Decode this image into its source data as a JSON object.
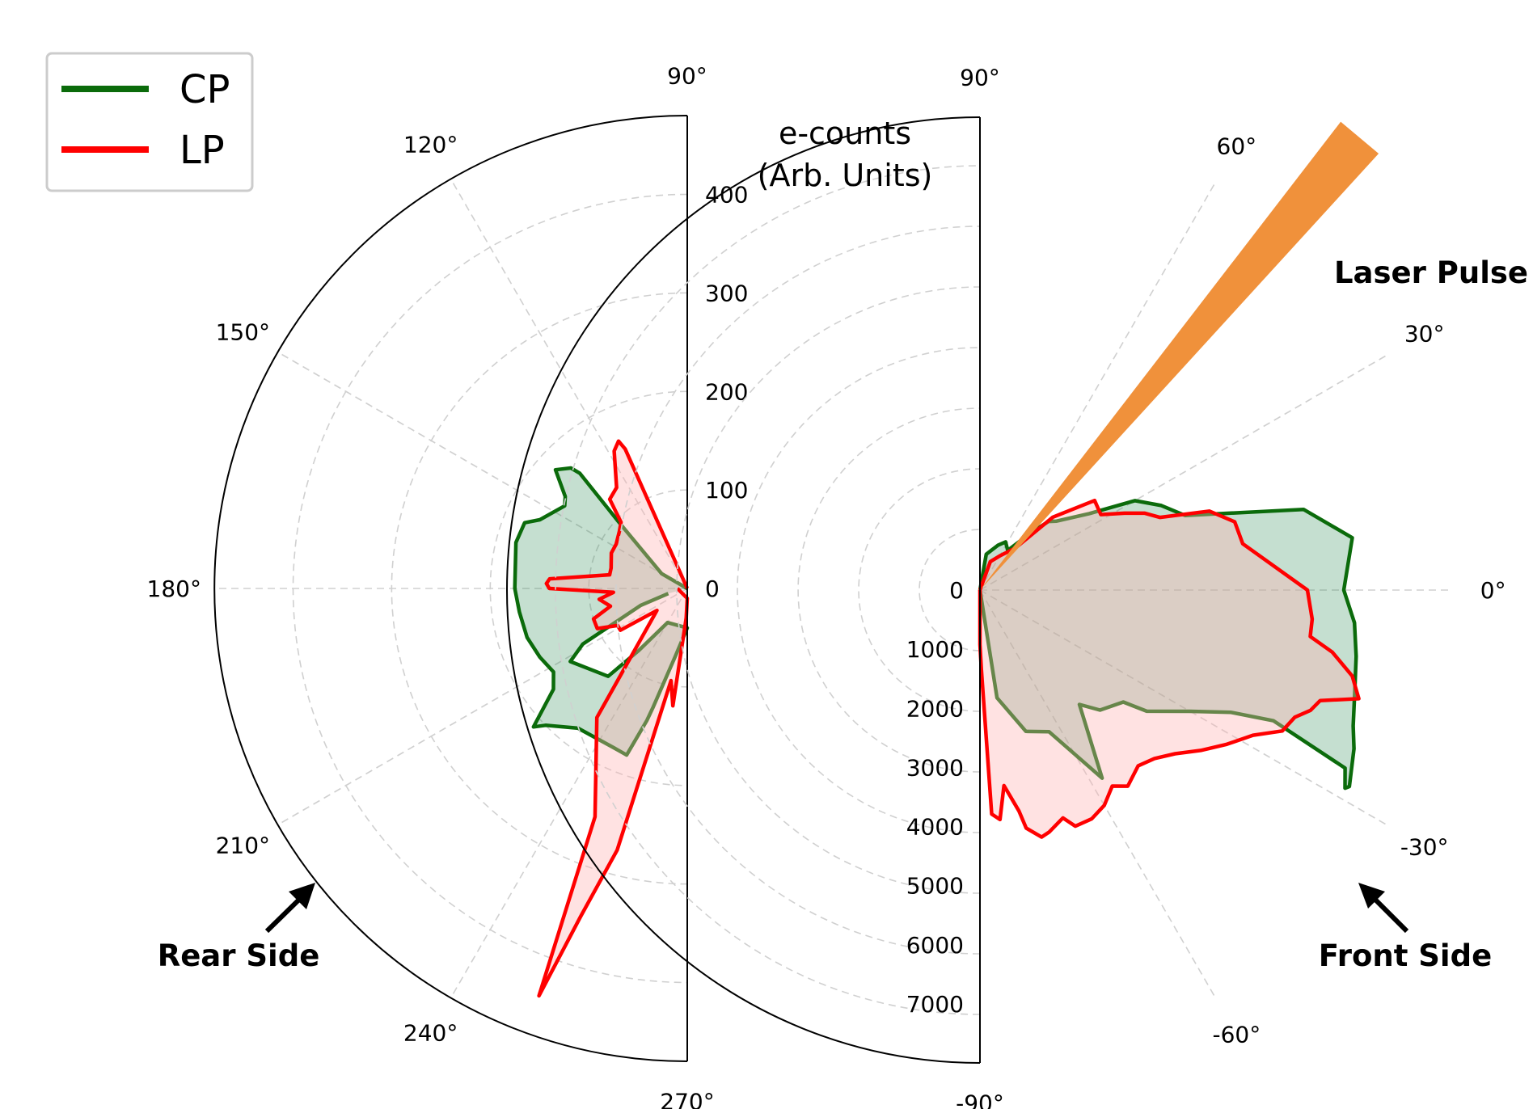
{
  "legend": {
    "cp_label": "CP",
    "lp_label": "LP"
  },
  "colors": {
    "cp": "#0b6b0b",
    "cp_fill": "#2e8b57",
    "lp": "#ff0000",
    "lp_fill": "#ffb3b3",
    "laser": "#f0913b"
  },
  "annotations": {
    "rear_side": "Rear Side",
    "front_side": "Front Side",
    "laser_pulse": "Laser Pulse",
    "rear_axis_label_line1": "e-counts",
    "rear_axis_label_line2": "(Arb. Units)"
  },
  "chart_data": [
    {
      "type": "polar-area",
      "name": "rear",
      "theta_range": [
        90,
        270
      ],
      "theta_ticks": [
        "90°",
        "120°",
        "150°",
        "180°",
        "210°",
        "240°",
        "270°"
      ],
      "theta_tick_values": [
        90,
        120,
        150,
        180,
        210,
        240,
        270
      ],
      "r_lim": [
        0,
        480
      ],
      "r_ticks": [
        "0",
        "100",
        "200",
        "300",
        "400"
      ],
      "r_tick_values": [
        0,
        100,
        200,
        300,
        400
      ],
      "r_label": "e-counts (Arb. Units)",
      "grid": true,
      "series": [
        {
          "name": "CP",
          "points": [
            [
              178,
              0
            ],
            [
              150,
              30
            ],
            [
              136,
              95
            ],
            [
              133,
              160
            ],
            [
              134,
              170
            ],
            [
              138,
              180
            ],
            [
              143,
              155
            ],
            [
              146,
              150
            ],
            [
              155,
              165
            ],
            [
              158,
              178
            ],
            [
              165,
              180
            ],
            [
              180,
              175
            ],
            [
              188,
              172
            ],
            [
              197,
              170
            ],
            [
              205,
              165
            ],
            [
              212,
              160
            ],
            [
              217,
              170
            ],
            [
              222,
              210
            ],
            [
              224,
              200
            ],
            [
              232,
              180
            ],
            [
              245,
              178
            ],
            [
              250,
              180
            ],
            [
              253,
              140
            ],
            [
              254,
              125
            ],
            [
              260,
              70
            ],
            [
              270,
              40
            ],
            [
              240,
              40
            ],
            [
              232,
              80
            ],
            [
              228,
              120
            ],
            [
              212,
              140
            ],
            [
              208,
              120
            ],
            [
              200,
              50
            ],
            [
              195,
              20
            ]
          ]
        },
        {
          "name": "LP",
          "points": [
            [
              135,
              0
            ],
            [
              114,
              155
            ],
            [
              115,
              165
            ],
            [
              118,
              158
            ],
            [
              125,
              125
            ],
            [
              131,
              120
            ],
            [
              135,
              95
            ],
            [
              140,
              90
            ],
            [
              148,
              85
            ],
            [
              155,
              85
            ],
            [
              165,
              80
            ],
            [
              170,
              80
            ],
            [
              176,
              140
            ],
            [
              178,
              143
            ],
            [
              180,
              140
            ],
            [
              183,
              75
            ],
            [
              187,
              90
            ],
            [
              193,
              80
            ],
            [
              198,
              100
            ],
            [
              204,
              100
            ],
            [
              208,
              80
            ],
            [
              212,
              80
            ],
            [
              216,
              38
            ],
            [
              235,
              160
            ],
            [
              248,
              250
            ],
            [
              250,
              440
            ],
            [
              252,
              350
            ],
            [
              255,
              275
            ],
            [
              260,
              95
            ],
            [
              263,
              120
            ],
            [
              268,
              30
            ],
            [
              270,
              10
            ],
            [
              180,
              10
            ]
          ]
        }
      ]
    },
    {
      "type": "polar-area",
      "name": "front",
      "theta_range": [
        -90,
        90
      ],
      "theta_ticks": [
        "90°",
        "60°",
        "30°",
        "0°",
        "-30°",
        "-60°",
        "-90°"
      ],
      "theta_tick_values": [
        90,
        60,
        30,
        0,
        -30,
        -60,
        -90
      ],
      "r_lim": [
        0,
        7800
      ],
      "r_ticks": [
        "0",
        "1000",
        "2000",
        "3000",
        "4000",
        "5000",
        "6000",
        "7000"
      ],
      "r_tick_values": [
        0,
        1000,
        2000,
        3000,
        4000,
        5000,
        6000,
        7000
      ],
      "grid": true,
      "laser_direction_deg": 50,
      "series": [
        {
          "name": "CP",
          "points": [
            [
              90,
              0
            ],
            [
              80,
              600
            ],
            [
              68,
              800
            ],
            [
              62,
              900
            ],
            [
              55,
              800
            ],
            [
              48,
              1300
            ],
            [
              45,
              1600
            ],
            [
              42,
              1700
            ],
            [
              35,
              2200
            ],
            [
              30,
              2950
            ],
            [
              25,
              3300
            ],
            [
              20,
              3600
            ],
            [
              14,
              5500
            ],
            [
              8,
              6200
            ],
            [
              0,
              6000
            ],
            [
              -5,
              6200
            ],
            [
              -10,
              6300
            ],
            [
              -15,
              6400
            ],
            [
              -20,
              6550
            ],
            [
              -23,
              6700
            ],
            [
              -28,
              6900
            ],
            [
              -28.5,
              6850
            ],
            [
              -26,
              6700
            ],
            [
              -24,
              5300
            ],
            [
              -26,
              4600
            ],
            [
              -30,
              4000
            ],
            [
              -36,
              3400
            ],
            [
              -38,
              3000
            ],
            [
              -45,
              2800
            ],
            [
              -49,
              2500
            ],
            [
              -57,
              3700
            ],
            [
              -64,
              2600
            ],
            [
              -72,
              2450
            ],
            [
              -81,
              1800
            ],
            [
              -90,
              0
            ]
          ]
        },
        {
          "name": "LP",
          "points": [
            [
              90,
              0
            ],
            [
              70,
              500
            ],
            [
              60,
              650
            ],
            [
              50,
              900
            ],
            [
              45,
              1700
            ],
            [
              38,
              2400
            ],
            [
              32,
              2350
            ],
            [
              28,
              2700
            ],
            [
              25,
              3000
            ],
            [
              22,
              3200
            ],
            [
              19,
              4000
            ],
            [
              15,
              4350
            ],
            [
              10,
              4400
            ],
            [
              0,
              5400
            ],
            [
              -5,
              5500
            ],
            [
              -8,
              5500
            ],
            [
              -10,
              5900
            ],
            [
              -13,
              6300
            ],
            [
              -16,
              6500
            ],
            [
              -18,
              5900
            ],
            [
              -20,
              5800
            ],
            [
              -22,
              5600
            ],
            [
              -25,
              5500
            ],
            [
              -28,
              5100
            ],
            [
              -32,
              4800
            ],
            [
              -36,
              4500
            ],
            [
              -40,
              4200
            ],
            [
              -44,
              4000
            ],
            [
              -48,
              3900
            ],
            [
              -53,
              4050
            ],
            [
              -56,
              3900
            ],
            [
              -60,
              4100
            ],
            [
              -64,
              4200
            ],
            [
              -68,
              4200
            ],
            [
              -70,
              4000
            ],
            [
              -74,
              4150
            ],
            [
              -76,
              4200
            ],
            [
              -79,
              4000
            ],
            [
              -80,
              3700
            ],
            [
              -83,
              3250
            ],
            [
              -85,
              3800
            ],
            [
              -87,
              3700
            ],
            [
              -89,
              1300
            ],
            [
              -90,
              900
            ],
            [
              -90,
              0
            ]
          ]
        }
      ]
    }
  ]
}
